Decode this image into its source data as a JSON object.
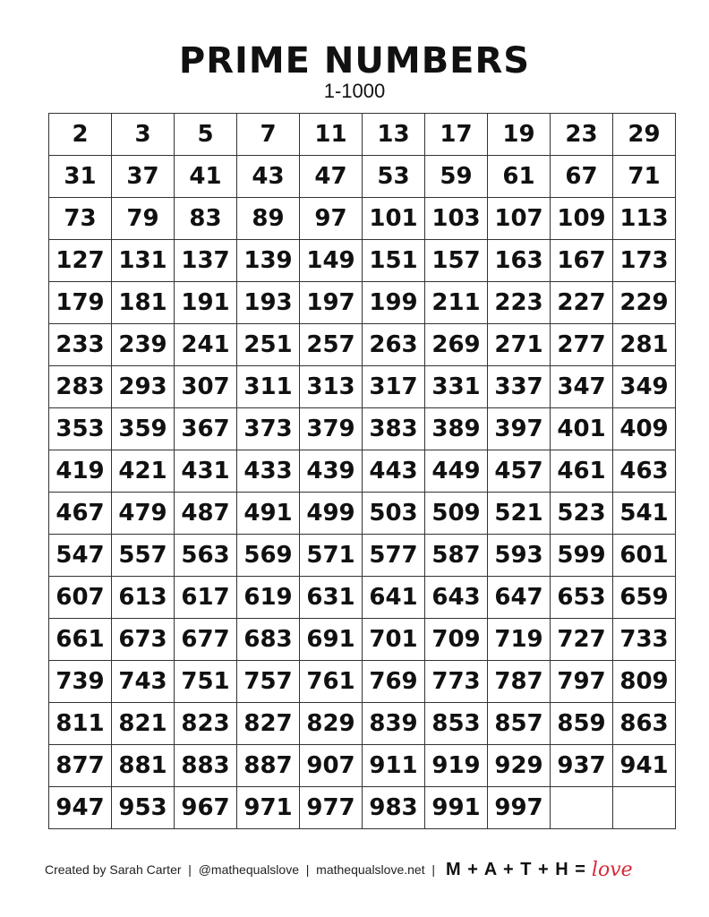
{
  "header": {
    "title": "PRIME NUMBERS",
    "subtitle": "1-1000"
  },
  "table": {
    "rows": [
      [
        "2",
        "3",
        "5",
        "7",
        "11",
        "13",
        "17",
        "19",
        "23",
        "29"
      ],
      [
        "31",
        "37",
        "41",
        "43",
        "47",
        "53",
        "59",
        "61",
        "67",
        "71"
      ],
      [
        "73",
        "79",
        "83",
        "89",
        "97",
        "101",
        "103",
        "107",
        "109",
        "113"
      ],
      [
        "127",
        "131",
        "137",
        "139",
        "149",
        "151",
        "157",
        "163",
        "167",
        "173"
      ],
      [
        "179",
        "181",
        "191",
        "193",
        "197",
        "199",
        "211",
        "223",
        "227",
        "229"
      ],
      [
        "233",
        "239",
        "241",
        "251",
        "257",
        "263",
        "269",
        "271",
        "277",
        "281"
      ],
      [
        "283",
        "293",
        "307",
        "311",
        "313",
        "317",
        "331",
        "337",
        "347",
        "349"
      ],
      [
        "353",
        "359",
        "367",
        "373",
        "379",
        "383",
        "389",
        "397",
        "401",
        "409"
      ],
      [
        "419",
        "421",
        "431",
        "433",
        "439",
        "443",
        "449",
        "457",
        "461",
        "463"
      ],
      [
        "467",
        "479",
        "487",
        "491",
        "499",
        "503",
        "509",
        "521",
        "523",
        "541"
      ],
      [
        "547",
        "557",
        "563",
        "569",
        "571",
        "577",
        "587",
        "593",
        "599",
        "601"
      ],
      [
        "607",
        "613",
        "617",
        "619",
        "631",
        "641",
        "643",
        "647",
        "653",
        "659"
      ],
      [
        "661",
        "673",
        "677",
        "683",
        "691",
        "701",
        "709",
        "719",
        "727",
        "733"
      ],
      [
        "739",
        "743",
        "751",
        "757",
        "761",
        "769",
        "773",
        "787",
        "797",
        "809"
      ],
      [
        "811",
        "821",
        "823",
        "827",
        "829",
        "839",
        "853",
        "857",
        "859",
        "863"
      ],
      [
        "877",
        "881",
        "883",
        "887",
        "907",
        "911",
        "919",
        "929",
        "937",
        "941"
      ],
      [
        "947",
        "953",
        "967",
        "971",
        "977",
        "983",
        "991",
        "997",
        "",
        ""
      ]
    ]
  },
  "footer": {
    "credit": "Created by Sarah Carter  |  @mathequalslove  |  mathequalslove.net  |",
    "logo": "M + A + T + H =",
    "logo_word": "love",
    "accent_color": "#d62b3a"
  }
}
